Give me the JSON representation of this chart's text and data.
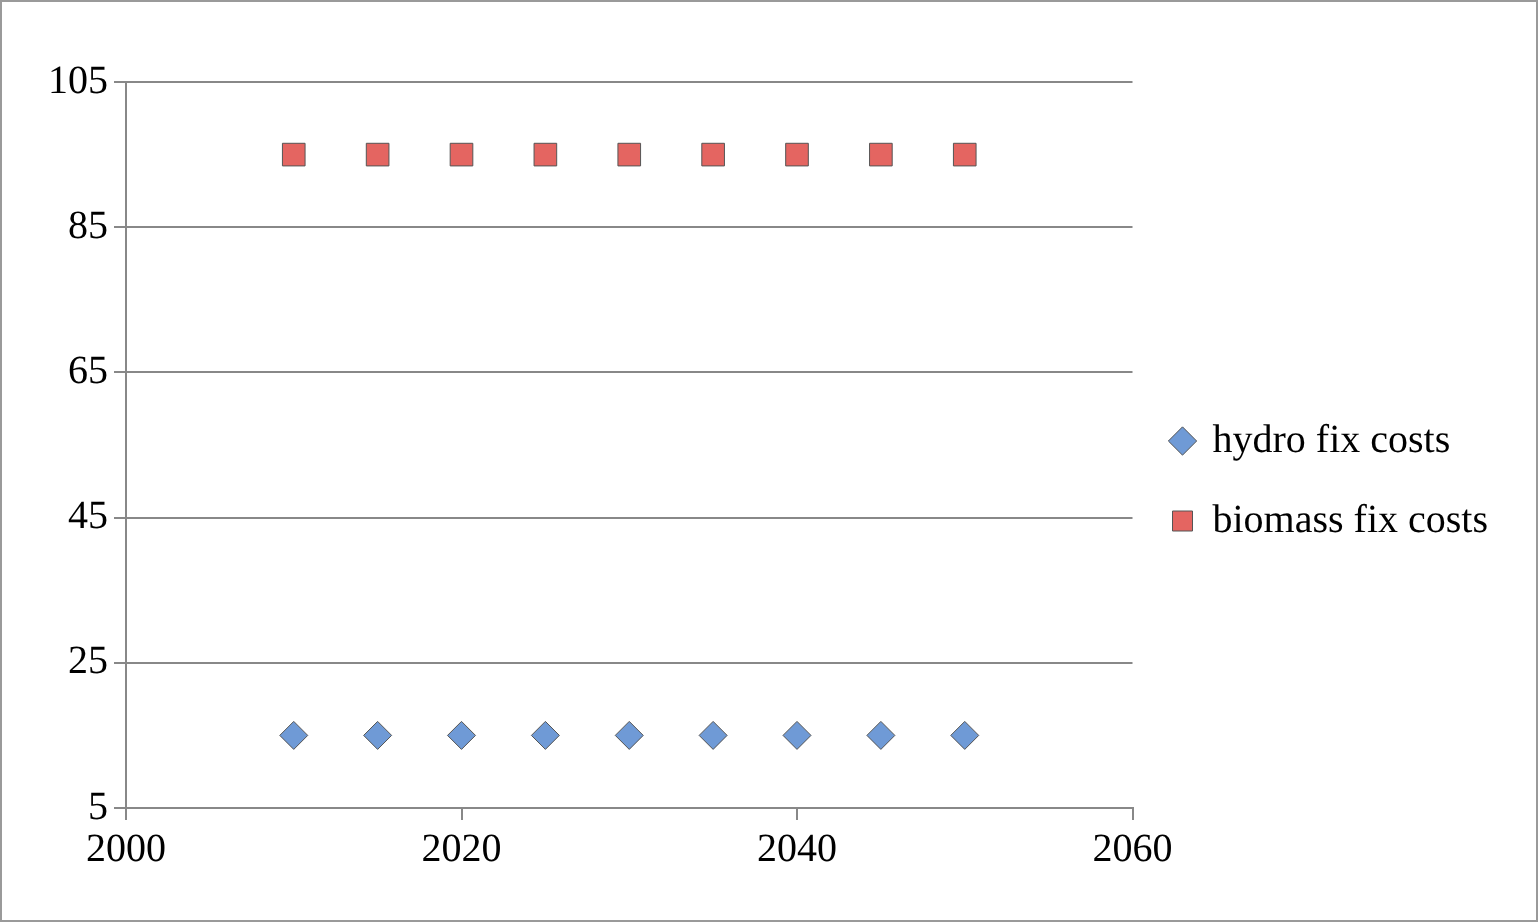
{
  "chart_data": {
    "type": "scatter",
    "x": [
      2010,
      2015,
      2020,
      2025,
      2030,
      2035,
      2040,
      2045,
      2050
    ],
    "series": [
      {
        "name": "hydro fix costs",
        "color": "#6f9ad6",
        "marker": "diamond",
        "values": [
          15,
          15,
          15,
          15,
          15,
          15,
          15,
          15,
          15
        ]
      },
      {
        "name": "biomass fix costs",
        "color": "#e46561",
        "marker": "square",
        "values": [
          95,
          95,
          95,
          95,
          95,
          95,
          95,
          95,
          95
        ]
      }
    ],
    "xlim": [
      2000,
      2060
    ],
    "xticks": [
      2000,
      2020,
      2040,
      2060
    ],
    "ylim": [
      5,
      105
    ],
    "yticks": [
      5,
      25,
      45,
      65,
      85,
      105
    ],
    "grid": "y",
    "legend": "right"
  }
}
